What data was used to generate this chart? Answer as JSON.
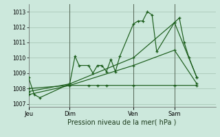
{
  "background_color": "#cce8dc",
  "grid_color": "#aac8b8",
  "line_color": "#1a5c1a",
  "title": "Pression niveau de la mer( hPa )",
  "ylim": [
    1006.8,
    1013.5
  ],
  "yticks": [
    1007,
    1008,
    1009,
    1010,
    1011,
    1012,
    1013
  ],
  "xlabel": "Pression niveau de la mer( hPa )",
  "day_labels": [
    "Jeu",
    "Dim",
    "Ven",
    "Sam"
  ],
  "day_positions": [
    0.0,
    0.22,
    0.56,
    0.78
  ],
  "xlim": [
    0.0,
    1.0
  ],
  "series": [
    {
      "x": [
        0.0,
        0.03,
        0.06,
        0.22,
        0.248,
        0.27,
        0.32,
        0.344,
        0.368,
        0.392,
        0.416,
        0.44,
        0.464,
        0.488,
        0.56,
        0.585,
        0.61,
        0.635,
        0.66,
        0.685,
        0.78,
        0.806,
        0.832,
        0.858,
        0.9
      ],
      "y": [
        1008.7,
        1007.6,
        1007.4,
        1008.3,
        1010.1,
        1009.5,
        1009.5,
        1009.0,
        1009.5,
        1009.5,
        1009.1,
        1009.9,
        1009.1,
        1010.1,
        1012.2,
        1012.4,
        1012.4,
        1013.0,
        1012.8,
        1010.4,
        1012.3,
        1012.6,
        1011.0,
        1010.0,
        1008.7
      ]
    },
    {
      "x": [
        0.0,
        0.22,
        0.32,
        0.368,
        0.416,
        0.56,
        0.78,
        0.9
      ],
      "y": [
        1008.0,
        1008.2,
        1008.2,
        1008.2,
        1008.2,
        1008.2,
        1008.2,
        1008.2
      ]
    },
    {
      "x": [
        0.0,
        0.22,
        0.56,
        0.78,
        0.9
      ],
      "y": [
        1007.8,
        1008.3,
        1010.0,
        1012.3,
        1008.7
      ]
    },
    {
      "x": [
        0.0,
        0.22,
        0.56,
        0.78,
        0.9
      ],
      "y": [
        1007.6,
        1008.2,
        1009.5,
        1010.5,
        1008.3
      ]
    }
  ],
  "vlines": [
    0.22,
    0.56,
    0.78
  ],
  "vline_color": "#556655"
}
